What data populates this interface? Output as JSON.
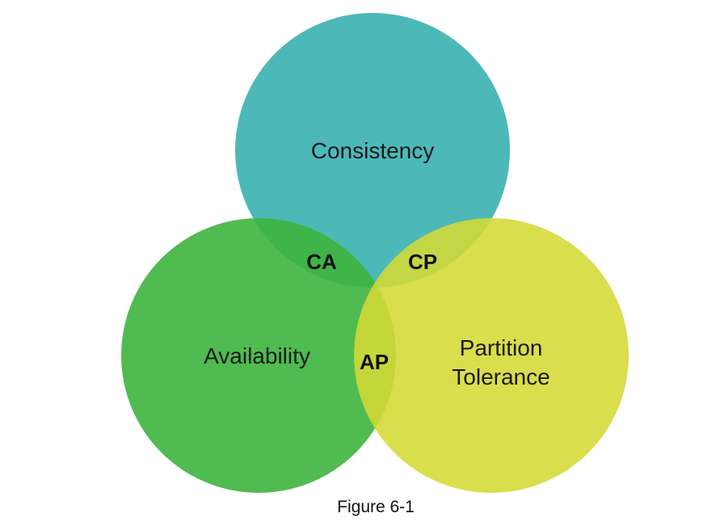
{
  "diagram": {
    "sets": {
      "consistency": {
        "label": "Consistency",
        "color": "#3fb3b3"
      },
      "availability": {
        "label": "Availability",
        "color": "#3db43d"
      },
      "partition": {
        "label_lines": [
          "Partition",
          "Tolerance"
        ],
        "color": "#d4d934"
      }
    },
    "overlaps": {
      "ca": {
        "label": "CA"
      },
      "cp": {
        "label": "CP"
      },
      "ap": {
        "label": "AP"
      }
    },
    "caption": "Figure 6-1"
  }
}
